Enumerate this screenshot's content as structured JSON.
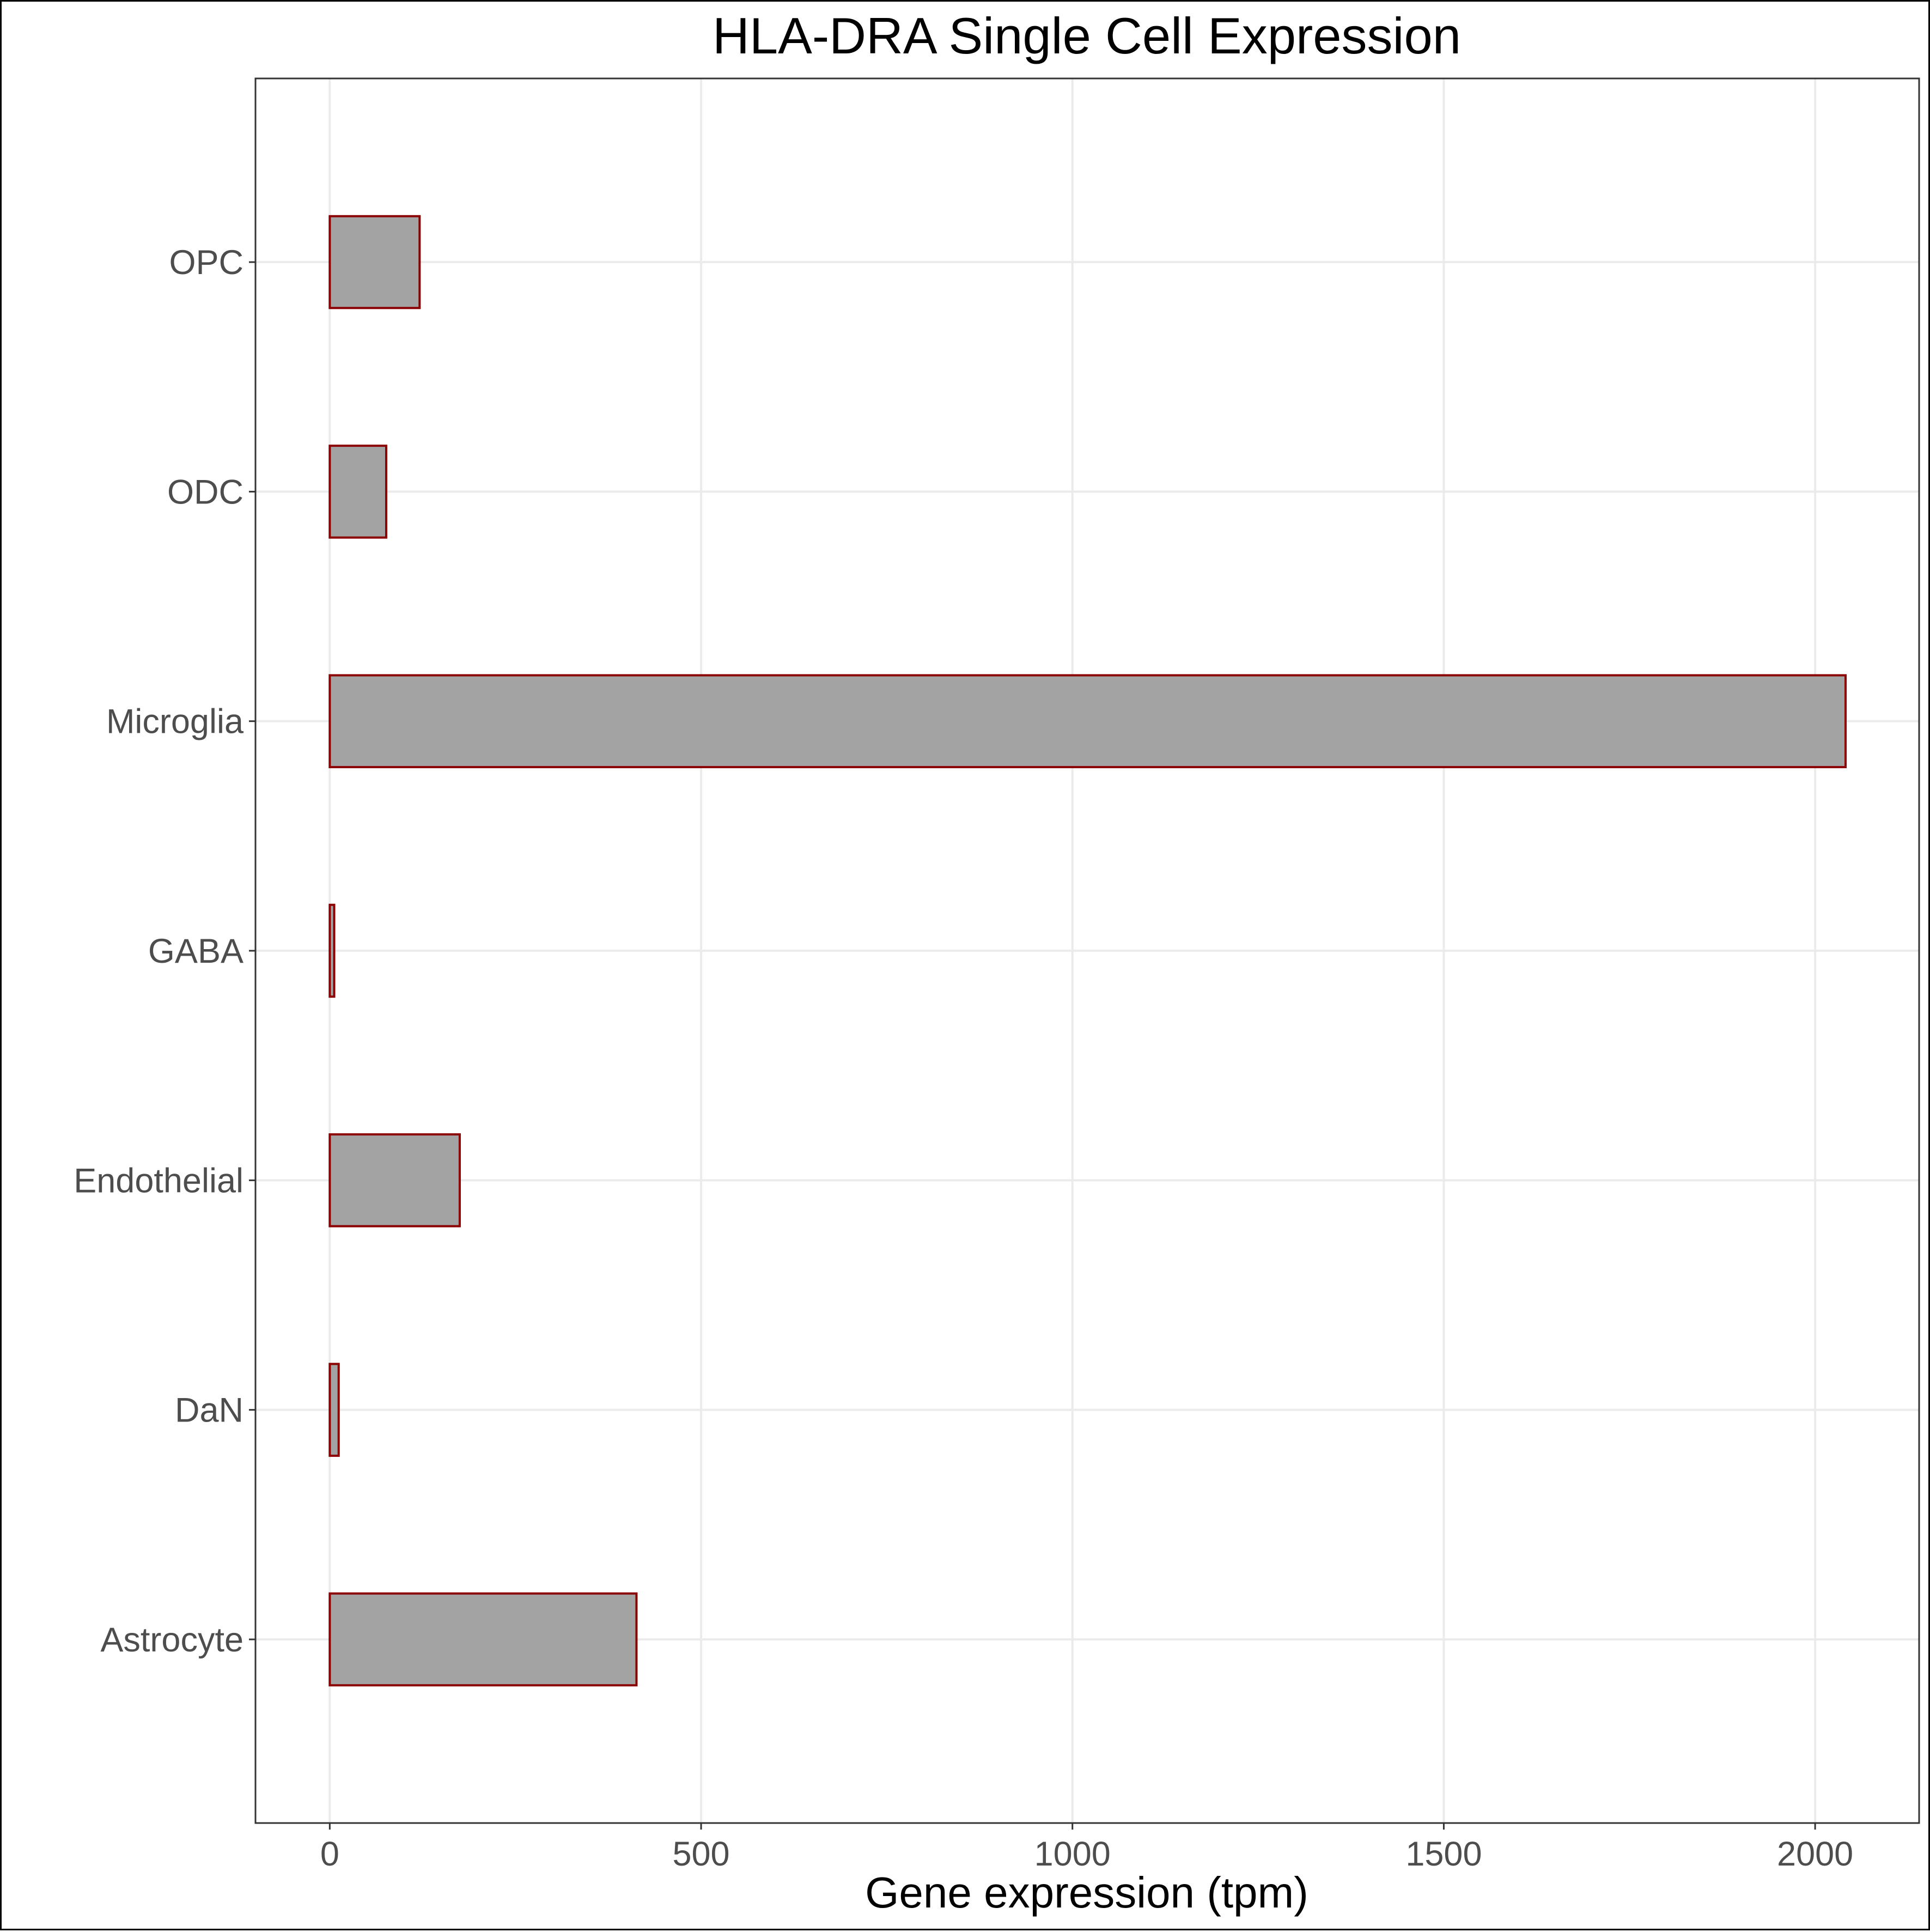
{
  "chart_data": {
    "type": "bar",
    "orientation": "horizontal",
    "title": "HLA-DRA Single Cell Expression",
    "xlabel": "Gene expression (tpm)",
    "ylabel": "",
    "categories": [
      "Astrocyte",
      "DaN",
      "Endothelial",
      "GABA",
      "Microglia",
      "ODC",
      "OPC"
    ],
    "values": [
      413,
      12,
      175,
      6,
      2041,
      76,
      121
    ],
    "xlim": [
      -100,
      2140
    ],
    "xticks": [
      0,
      500,
      1000,
      1500,
      2000
    ],
    "grid": true,
    "legend": "none",
    "colors": {
      "bar_fill": "#a3a3a3",
      "bar_outline": "#8b0000",
      "grid": "#ebebeb",
      "tick_text": "#4d4d4d"
    }
  }
}
